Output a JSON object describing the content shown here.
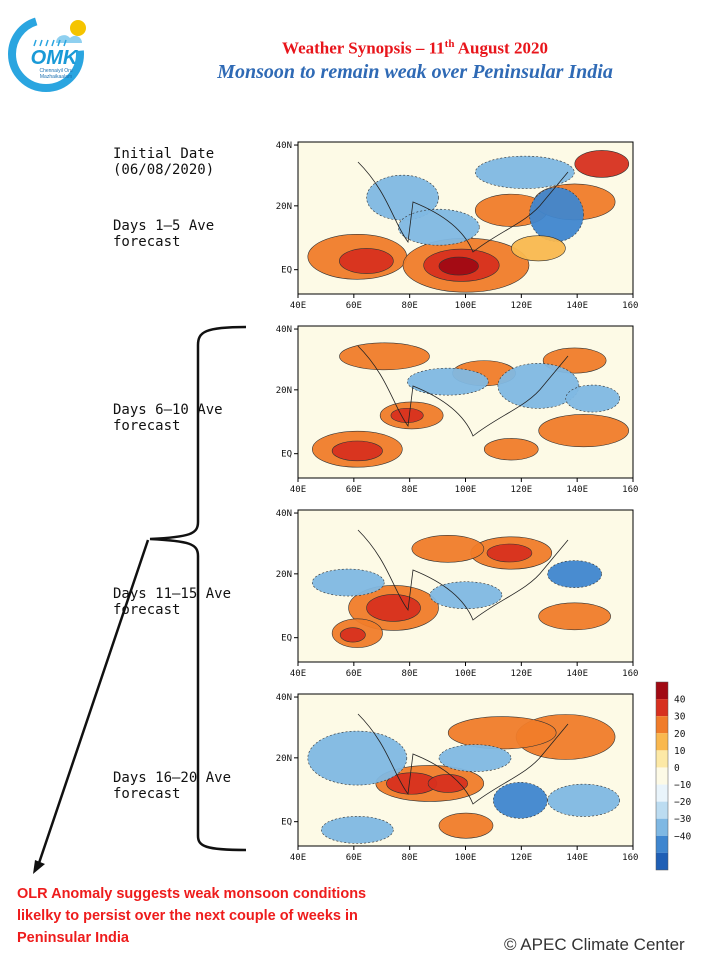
{
  "logo": {
    "text": "OMK",
    "tagline_1": "Chennaiyil Oru",
    "tagline_2": "Mazhaikaalam"
  },
  "header": {
    "title_prefix": "Weather Synopsis – 11",
    "title_sup": "th",
    "title_suffix": " August 2020",
    "subtitle": "Monsoon to remain weak over Peninsular India"
  },
  "labels": {
    "initial_1": "Initial Date",
    "initial_2": "(06/08/2020)",
    "p1_1": "Days 1–5 Ave",
    "p1_2": "forecast",
    "p2_1": "Days 6–10 Ave",
    "p2_2": "forecast",
    "p3_1": "Days 11–15 Ave",
    "p3_2": "forecast",
    "p4_1": "Days 16–20 Ave",
    "p4_2": "forecast"
  },
  "map_axes": {
    "lat": [
      "40N",
      "20N",
      "EQ"
    ],
    "lon": [
      "40E",
      "60E",
      "80E",
      "100E",
      "120E",
      "140E",
      "160E"
    ]
  },
  "legend": {
    "values": [
      "40",
      "30",
      "20",
      "10",
      "0",
      "−10",
      "−20",
      "−30",
      "−40"
    ],
    "colors": [
      "#a10a14",
      "#d7301f",
      "#f07c2a",
      "#f9b84f",
      "#fde9a6",
      "#fdfae6",
      "#e9f4fb",
      "#bcdcf1",
      "#7fb8e3",
      "#3f86cf",
      "#1f5fb5"
    ]
  },
  "note": {
    "line_1": "OLR Anomaly suggests weak monsoon conditions",
    "line_2": "likelky to persist over the next couple of weeks in",
    "line_3": "Peninsular India"
  },
  "credit": "©  APEC Climate Center"
}
